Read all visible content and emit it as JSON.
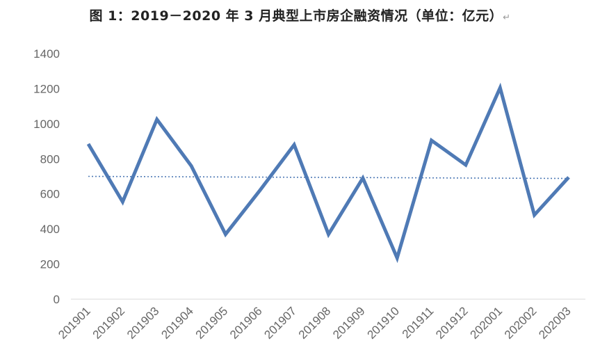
{
  "title": "图 1：2019－2020 年 3 月典型上市房企融资情况（单位：亿元）",
  "title_mark": "↵",
  "chart_data": {
    "type": "line",
    "title": "图 1：2019－2020 年 3 月典型上市房企融资情况（单位：亿元）",
    "xlabel": "",
    "ylabel": "",
    "categories": [
      "201901",
      "201902",
      "201903",
      "201904",
      "201905",
      "201906",
      "201907",
      "201908",
      "201909",
      "201910",
      "201911",
      "201912",
      "202001",
      "202002",
      "202003"
    ],
    "series": [
      {
        "values": [
          885,
          555,
          1025,
          760,
          370,
          620,
          880,
          370,
          690,
          235,
          905,
          765,
          1205,
          480,
          695
        ],
        "color": "#4f7ab5"
      }
    ],
    "trendline": {
      "style": "dotted",
      "start": 700,
      "end": 688,
      "color": "#4f7ab5"
    },
    "ylim": [
      0,
      1400
    ],
    "yticks": [
      0,
      200,
      400,
      600,
      800,
      1000,
      1200,
      1400
    ],
    "grid": false,
    "legend": "none"
  }
}
